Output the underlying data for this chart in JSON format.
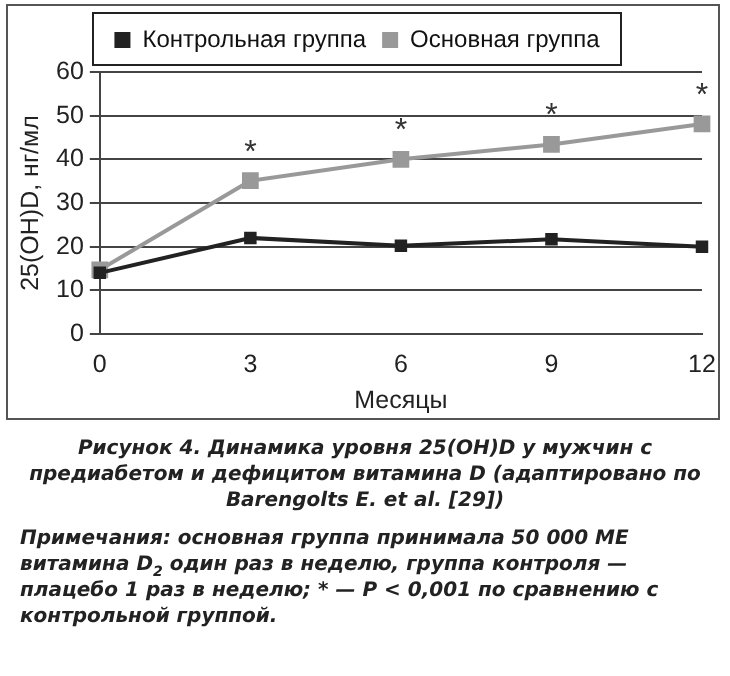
{
  "chart_data": {
    "type": "line",
    "title": "Рисунок 4. Динамика уровня 25(OH)D у мужчин с предиабетом и дефицитом витамина D (адаптировано по Barengolts E. et al. [29])",
    "xlabel": "Месяцы",
    "ylabel": "25(OH)D, нг/мл",
    "categories": [
      "0",
      "3",
      "6",
      "9",
      "12"
    ],
    "series": [
      {
        "name": "Контрольная группа",
        "color": "#222222",
        "values": [
          14.0,
          22.0,
          20.2,
          21.7,
          20.0
        ]
      },
      {
        "name": "Основная группа",
        "color": "#999999",
        "values": [
          14.7,
          35.1,
          40.0,
          43.4,
          48.1
        ]
      }
    ],
    "ylim": [
      0,
      60
    ],
    "yticks": [
      0,
      10,
      20,
      30,
      40,
      50,
      60
    ],
    "grid": "y",
    "legend": "top",
    "marker": "square",
    "line_style": "solid",
    "annotations": [
      {
        "text": "*",
        "x": "3",
        "y": 35.1
      },
      {
        "text": "*",
        "x": "6",
        "y": 40.0
      },
      {
        "text": "*",
        "x": "9",
        "y": 43.4
      },
      {
        "text": "*",
        "x": "12",
        "y": 48.1
      },
      "Примечания: основная группа принимала 50 000 МЕ витамина D$_{2}$ один раз в неделю, группа контроля — плацебо 1 раз в неделю; * — P < 0,001 по сравнению с контрольной группой."
    ]
  }
}
